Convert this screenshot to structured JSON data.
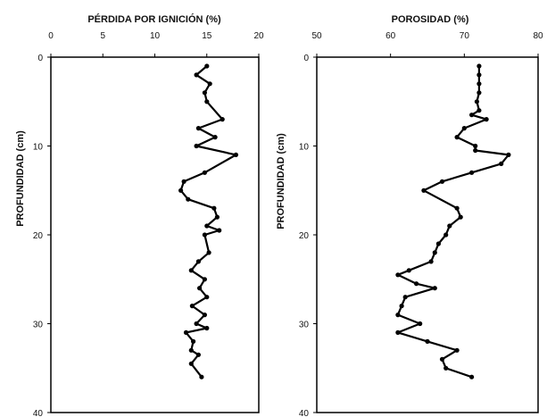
{
  "chart_data": [
    {
      "type": "line",
      "title": "PÉRDIDA POR IGNICIÓN (%)",
      "xlabel": "PÉRDIDA POR IGNICIÓN (%)",
      "ylabel": "PROFUNDIDAD (cm)",
      "xlim": [
        0,
        20
      ],
      "ylim": [
        0,
        40
      ],
      "y_inverted": true,
      "x_ticks": [
        "0",
        "5",
        "10",
        "15",
        "20"
      ],
      "y_ticks": [
        "0",
        "10",
        "20",
        "30",
        "40"
      ],
      "x_axis_position": "top",
      "grid": false,
      "series": [
        {
          "x": [
            15,
            14,
            15.3,
            14.8,
            15,
            16.5,
            14.2,
            15.8,
            14,
            17.8,
            14.8,
            12.8,
            12.5,
            13.2,
            15.7,
            16,
            15,
            16.2,
            14.8,
            15.2,
            14.2,
            13.5,
            14.8,
            14.3,
            15,
            13.6,
            14.8,
            14,
            15,
            13,
            13.7,
            13.5,
            14.2,
            13.5,
            14.5
          ],
          "y": [
            1,
            2,
            3,
            4,
            5,
            7,
            8,
            9,
            10,
            11,
            13,
            14,
            15,
            16,
            17,
            18,
            19,
            19.5,
            20,
            22,
            23,
            24,
            25,
            26,
            27,
            28,
            29,
            30,
            30.5,
            31,
            32,
            33,
            33.5,
            34.5,
            36
          ]
        }
      ]
    },
    {
      "type": "line",
      "title": "POROSIDAD (%)",
      "xlabel": "POROSIDAD (%)",
      "ylabel": "PROFUNDIDAD (cm)",
      "xlim": [
        50,
        80
      ],
      "ylim": [
        0,
        40
      ],
      "y_inverted": true,
      "x_ticks": [
        "50",
        "60",
        "70",
        "80"
      ],
      "y_ticks": [
        "0",
        "10",
        "20",
        "30",
        "40"
      ],
      "x_axis_position": "top",
      "grid": false,
      "series": [
        {
          "x": [
            72,
            72,
            72,
            72,
            71.7,
            72,
            71,
            73,
            70,
            69,
            71.5,
            71.5,
            76,
            75,
            71,
            67,
            64.5,
            69,
            69.5,
            68,
            67.5,
            66.5,
            66,
            65.5,
            62.5,
            61,
            63.5,
            66,
            62,
            61.5,
            61,
            64,
            61,
            65,
            69,
            67,
            67.5,
            71
          ],
          "y": [
            1,
            2,
            3,
            4,
            5,
            6,
            6.5,
            7,
            8,
            9,
            10,
            10.5,
            11,
            12,
            13,
            14,
            15,
            17,
            18,
            19,
            20,
            21,
            22,
            23,
            24,
            24.5,
            25.5,
            26,
            27,
            28,
            29,
            30,
            31,
            32,
            33,
            34,
            35,
            36
          ]
        }
      ]
    }
  ]
}
